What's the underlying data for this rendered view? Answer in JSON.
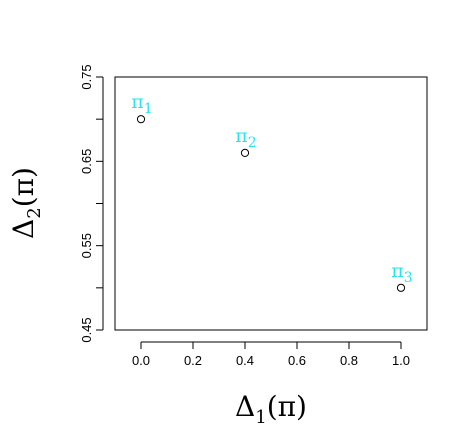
{
  "chart_data": {
    "type": "scatter",
    "title": "",
    "xlabel": {
      "base": "Δ",
      "sub": "1",
      "rest": "(π)"
    },
    "ylabel": {
      "base": "Δ",
      "sub": "2",
      "rest": "(π)"
    },
    "xlim": [
      -0.1,
      1.1
    ],
    "ylim": [
      0.45,
      0.75
    ],
    "xticks": [
      0.0,
      0.2,
      0.4,
      0.6,
      0.8,
      1.0
    ],
    "xtick_labels": [
      "0.0",
      "0.2",
      "0.4",
      "0.6",
      "0.8",
      "1.0"
    ],
    "yticks": [
      0.45,
      0.55,
      0.65,
      0.75
    ],
    "ytick_labels": [
      "0.45",
      "0.55",
      "0.65",
      "0.75"
    ],
    "yminor_ticks": [
      0.5,
      0.6,
      0.7
    ],
    "grid": false,
    "label_color": "#22e6ee",
    "points": [
      {
        "x": 0.0,
        "y": 0.7,
        "label": "π",
        "sub": "1"
      },
      {
        "x": 0.4,
        "y": 0.66,
        "label": "π",
        "sub": "2"
      },
      {
        "x": 1.0,
        "y": 0.5,
        "label": "π",
        "sub": "3"
      }
    ]
  }
}
